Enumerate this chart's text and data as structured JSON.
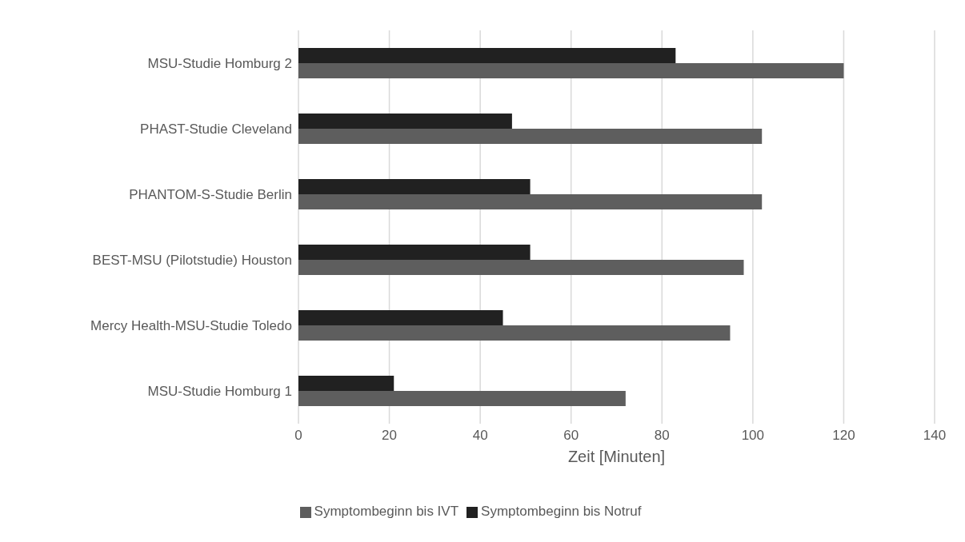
{
  "chart_data": {
    "type": "bar",
    "orientation": "horizontal",
    "xlabel": "Zeit [Minuten]",
    "categories": [
      "MSU-Studie Homburg 2",
      "PHAST-Studie Cleveland",
      "PHANTOM-S-Studie Berlin",
      "BEST-MSU (Pilotstudie) Houston",
      "Mercy Health-MSU-Studie Toledo",
      "MSU-Studie Homburg 1"
    ],
    "series": [
      {
        "name": "Symptombeginn bis Notruf",
        "color": "#212121",
        "values": [
          83,
          47,
          51,
          51,
          45,
          21
        ]
      },
      {
        "name": "Symptombeginn bis IVT",
        "color": "#5e5e5e",
        "values": [
          120,
          102,
          102,
          98,
          95,
          72
        ]
      }
    ],
    "xlim": [
      0,
      140
    ],
    "xticks": [
      0,
      20,
      40,
      60,
      80,
      100,
      120,
      140
    ],
    "grid": "x",
    "legend": "bottom"
  }
}
